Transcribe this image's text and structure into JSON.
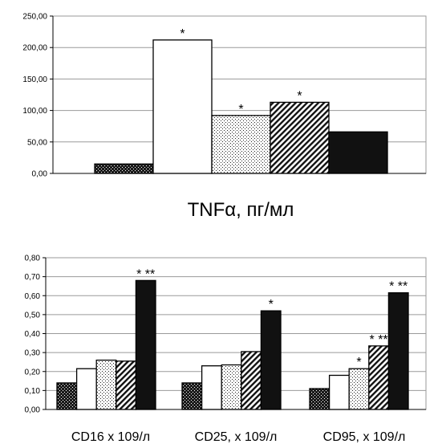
{
  "chart_data": [
    {
      "type": "bar",
      "title": "TNFα, пг/мл",
      "ylim": [
        0,
        250
      ],
      "yticks": [
        "0,00",
        "50,00",
        "100,00",
        "150,00",
        "200,00",
        "250,00"
      ],
      "yticks_values": [
        0,
        50,
        100,
        150,
        200,
        250
      ],
      "grid": "horizontal",
      "groups": [
        {
          "label": "",
          "values": [
            15,
            212,
            92,
            113,
            66
          ],
          "annotations": [
            "",
            "*",
            "*",
            "*",
            ""
          ]
        }
      ]
    },
    {
      "type": "bar",
      "ylim": [
        0,
        0.8
      ],
      "yticks": [
        "0,00",
        "0,10",
        "0,20",
        "0,30",
        "0,40",
        "0,50",
        "0,60",
        "0,70",
        "0,80"
      ],
      "yticks_values": [
        0,
        0.1,
        0.2,
        0.3,
        0.4,
        0.5,
        0.6,
        0.7,
        0.8
      ],
      "grid": "horizontal",
      "groups": [
        {
          "label": "CD16 х 109/л",
          "values": [
            0.14,
            0.215,
            0.26,
            0.255,
            0.68
          ],
          "annotations": [
            "",
            "",
            "",
            "",
            "* **"
          ]
        },
        {
          "label": "CD25, х 109/л",
          "values": [
            0.14,
            0.23,
            0.235,
            0.305,
            0.52
          ],
          "annotations": [
            "",
            "",
            "",
            "",
            "*"
          ]
        },
        {
          "label": "CD95, х 109/л",
          "values": [
            0.11,
            0.18,
            0.215,
            0.335,
            0.615
          ],
          "annotations": [
            "",
            "",
            "*",
            "* **",
            "* **"
          ]
        }
      ]
    }
  ],
  "series_styles": [
    {
      "pattern": "dots-dark",
      "fill": "#1a1a1a",
      "accent": "#ffffff"
    },
    {
      "pattern": "solid",
      "fill": "#ffffff"
    },
    {
      "pattern": "dots-light",
      "fill": "#ffffff",
      "accent": "#222222"
    },
    {
      "pattern": "diagonal",
      "fill": "#ffffff",
      "accent": "#111111"
    },
    {
      "pattern": "solid",
      "fill": "#111111"
    }
  ]
}
